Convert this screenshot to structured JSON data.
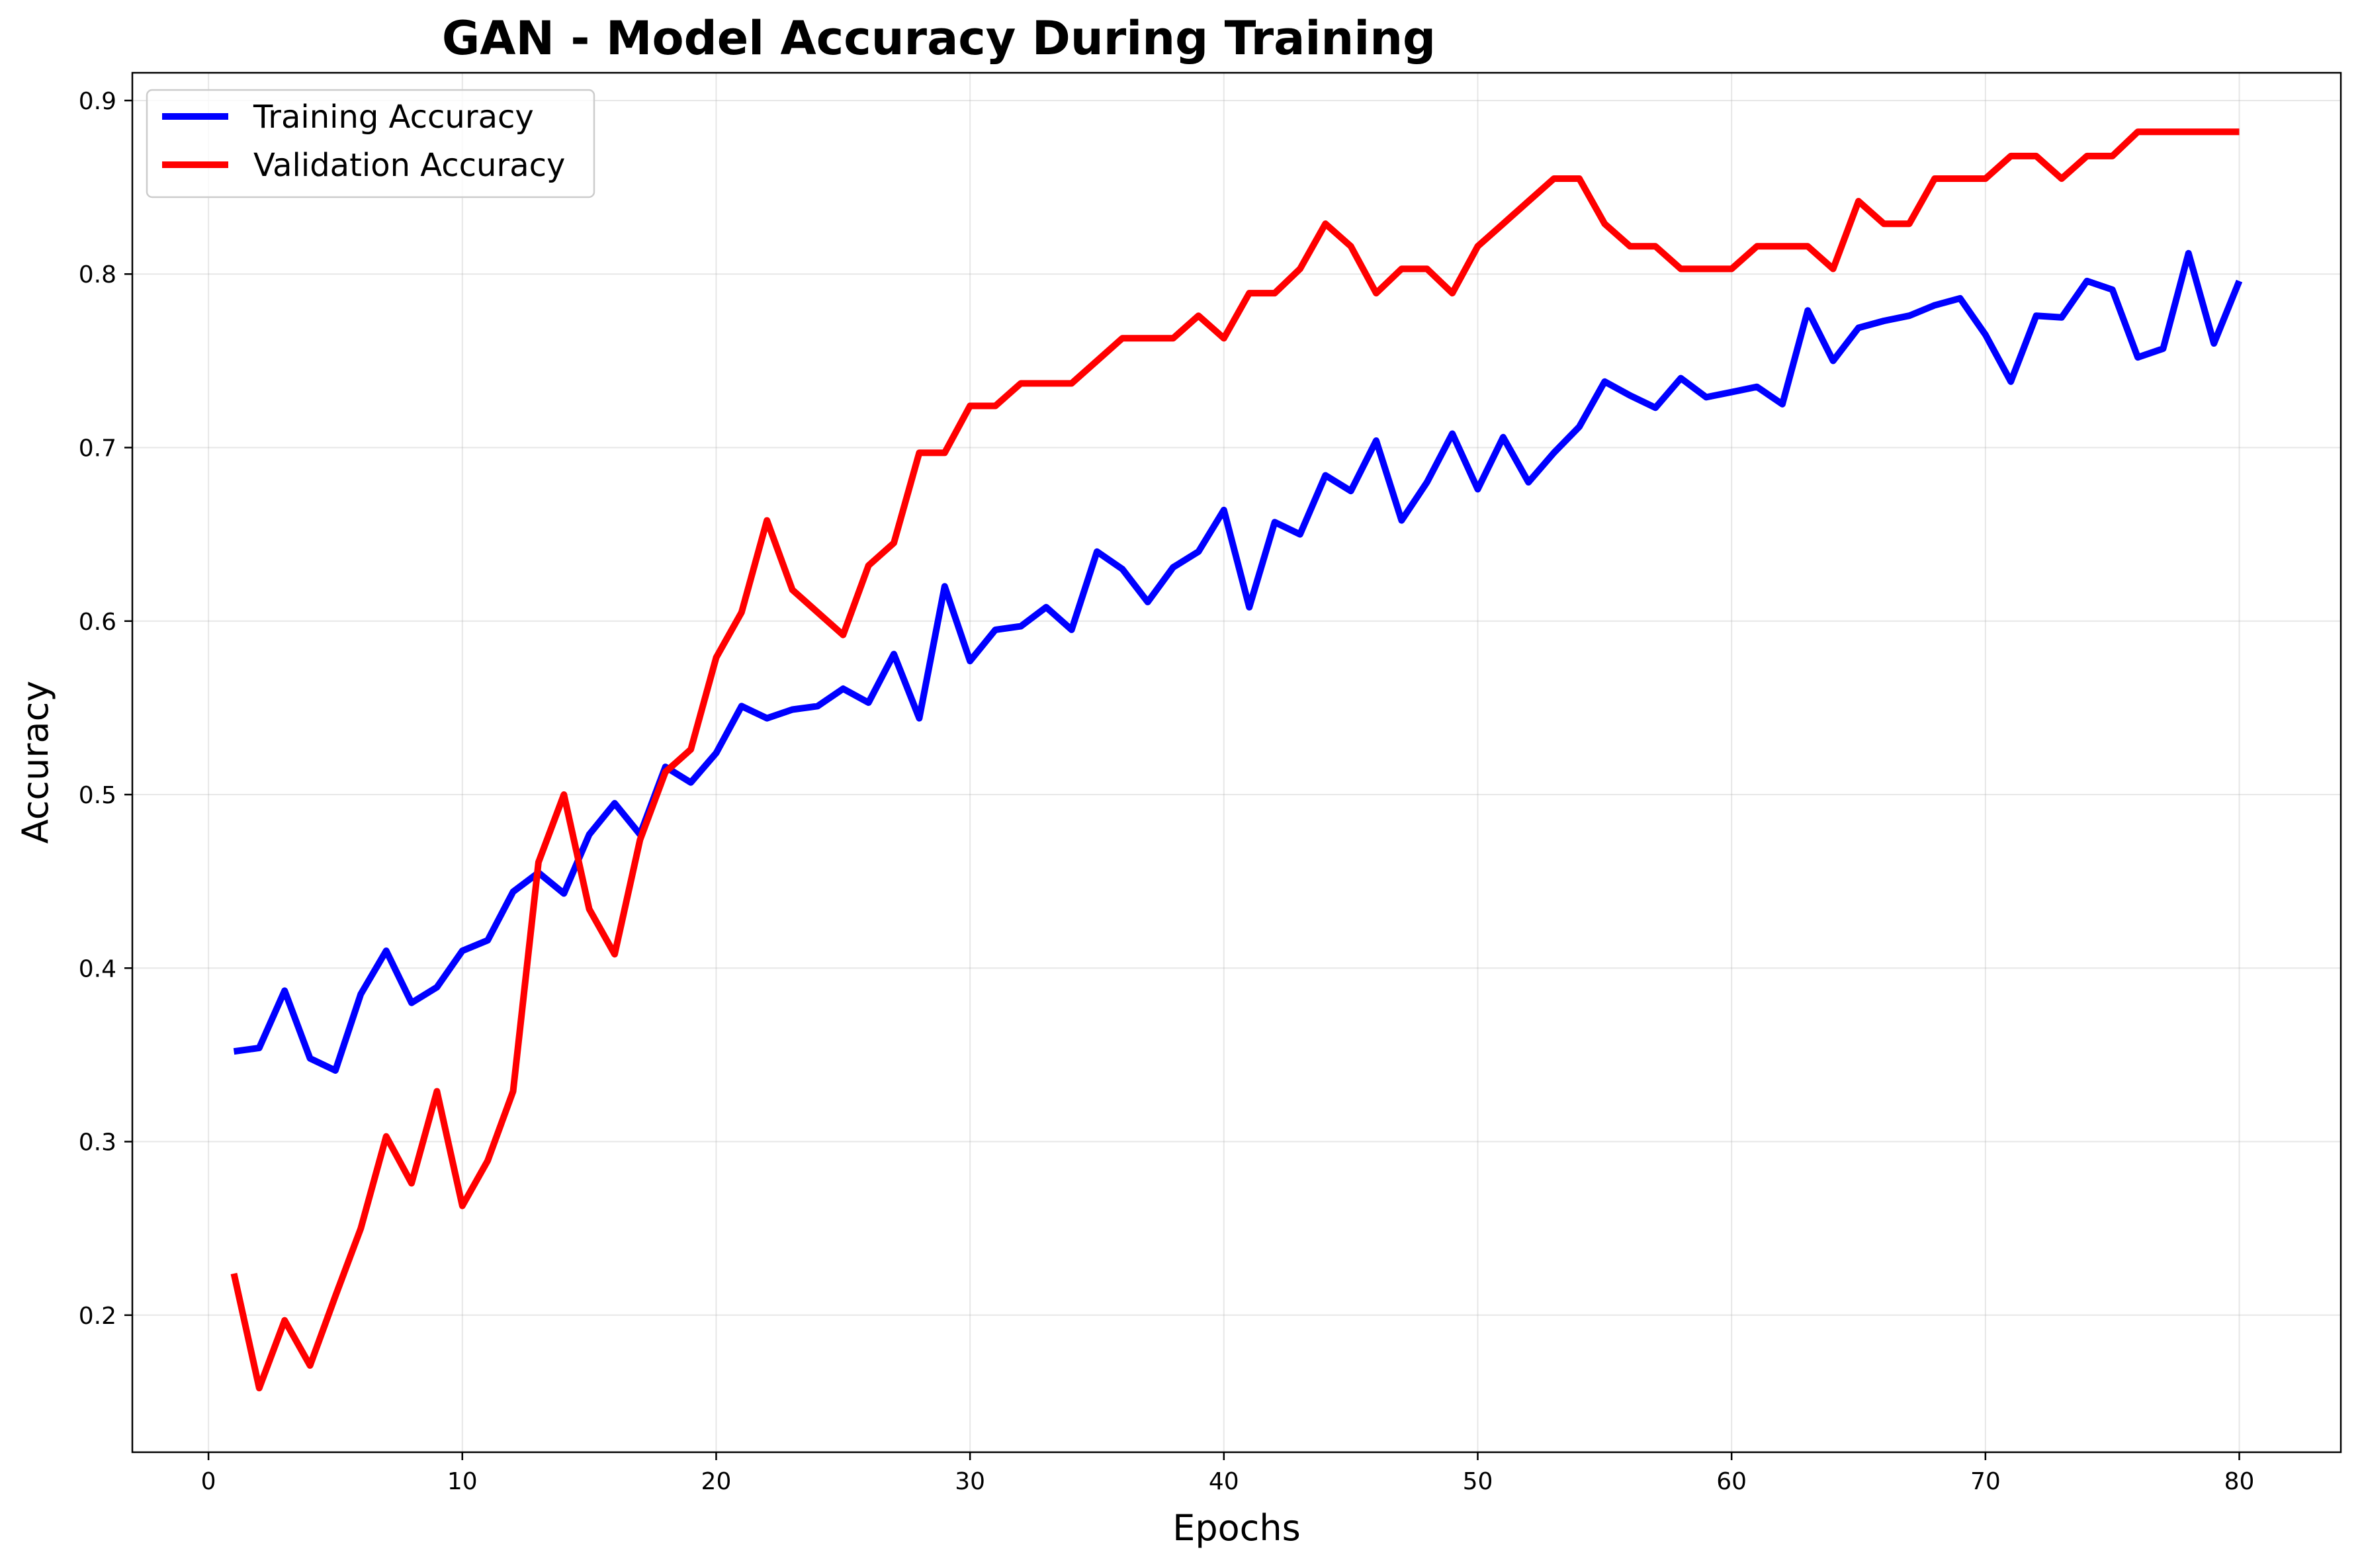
{
  "chart_data": {
    "type": "line",
    "title": "GAN - Model Accuracy During Training",
    "xlabel": "Epochs",
    "ylabel": "Accuracy",
    "xlim": [
      -3,
      84
    ],
    "ylim": [
      0.121,
      0.916
    ],
    "xticks": [
      0,
      10,
      20,
      30,
      40,
      50,
      60,
      70,
      80
    ],
    "yticks": [
      0.2,
      0.3,
      0.4,
      0.5,
      0.6,
      0.7,
      0.8,
      0.9
    ],
    "grid": true,
    "legend_position": "top-left",
    "x": [
      1,
      2,
      3,
      4,
      5,
      6,
      7,
      8,
      9,
      10,
      11,
      12,
      13,
      14,
      15,
      16,
      17,
      18,
      19,
      20,
      21,
      22,
      23,
      24,
      25,
      26,
      27,
      28,
      29,
      30,
      31,
      32,
      33,
      34,
      35,
      36,
      37,
      38,
      39,
      40,
      41,
      42,
      43,
      44,
      45,
      46,
      47,
      48,
      49,
      50,
      51,
      52,
      53,
      54,
      55,
      56,
      57,
      58,
      59,
      60,
      61,
      62,
      63,
      64,
      65,
      66,
      67,
      68,
      69,
      70,
      71,
      72,
      73,
      74,
      75,
      76,
      77,
      78,
      79,
      80
    ],
    "series": [
      {
        "name": "Training Accuracy",
        "color": "#0000ff",
        "values": [
          0.352,
          0.354,
          0.387,
          0.348,
          0.341,
          0.385,
          0.41,
          0.38,
          0.389,
          0.41,
          0.416,
          0.444,
          0.455,
          0.443,
          0.477,
          0.495,
          0.477,
          0.516,
          0.507,
          0.524,
          0.551,
          0.544,
          0.549,
          0.551,
          0.561,
          0.553,
          0.581,
          0.544,
          0.62,
          0.577,
          0.595,
          0.597,
          0.608,
          0.595,
          0.64,
          0.63,
          0.611,
          0.631,
          0.64,
          0.664,
          0.608,
          0.657,
          0.65,
          0.684,
          0.675,
          0.704,
          0.658,
          0.68,
          0.708,
          0.676,
          0.706,
          0.68,
          0.697,
          0.712,
          0.738,
          0.73,
          0.723,
          0.74,
          0.729,
          0.732,
          0.735,
          0.725,
          0.779,
          0.75,
          0.769,
          0.773,
          0.776,
          0.782,
          0.786,
          0.765,
          0.738,
          0.776,
          0.775,
          0.796,
          0.791,
          0.752,
          0.757,
          0.812,
          0.76,
          0.796
        ]
      },
      {
        "name": "Validation Accuracy",
        "color": "#ff0000",
        "values": [
          0.224,
          0.158,
          0.197,
          0.171,
          0.211,
          0.25,
          0.303,
          0.276,
          0.329,
          0.263,
          0.289,
          0.329,
          0.461,
          0.5,
          0.434,
          0.408,
          0.474,
          0.513,
          0.526,
          0.579,
          0.605,
          0.658,
          0.618,
          0.605,
          0.592,
          0.632,
          0.645,
          0.697,
          0.697,
          0.724,
          0.724,
          0.737,
          0.737,
          0.737,
          0.75,
          0.763,
          0.763,
          0.763,
          0.776,
          0.763,
          0.789,
          0.789,
          0.803,
          0.829,
          0.816,
          0.789,
          0.803,
          0.803,
          0.789,
          0.816,
          0.829,
          0.842,
          0.855,
          0.855,
          0.829,
          0.816,
          0.816,
          0.803,
          0.803,
          0.803,
          0.816,
          0.816,
          0.816,
          0.803,
          0.842,
          0.829,
          0.829,
          0.855,
          0.855,
          0.855,
          0.868,
          0.868,
          0.855,
          0.868,
          0.868,
          0.882,
          0.882,
          0.882,
          0.882,
          0.882
        ]
      }
    ]
  }
}
